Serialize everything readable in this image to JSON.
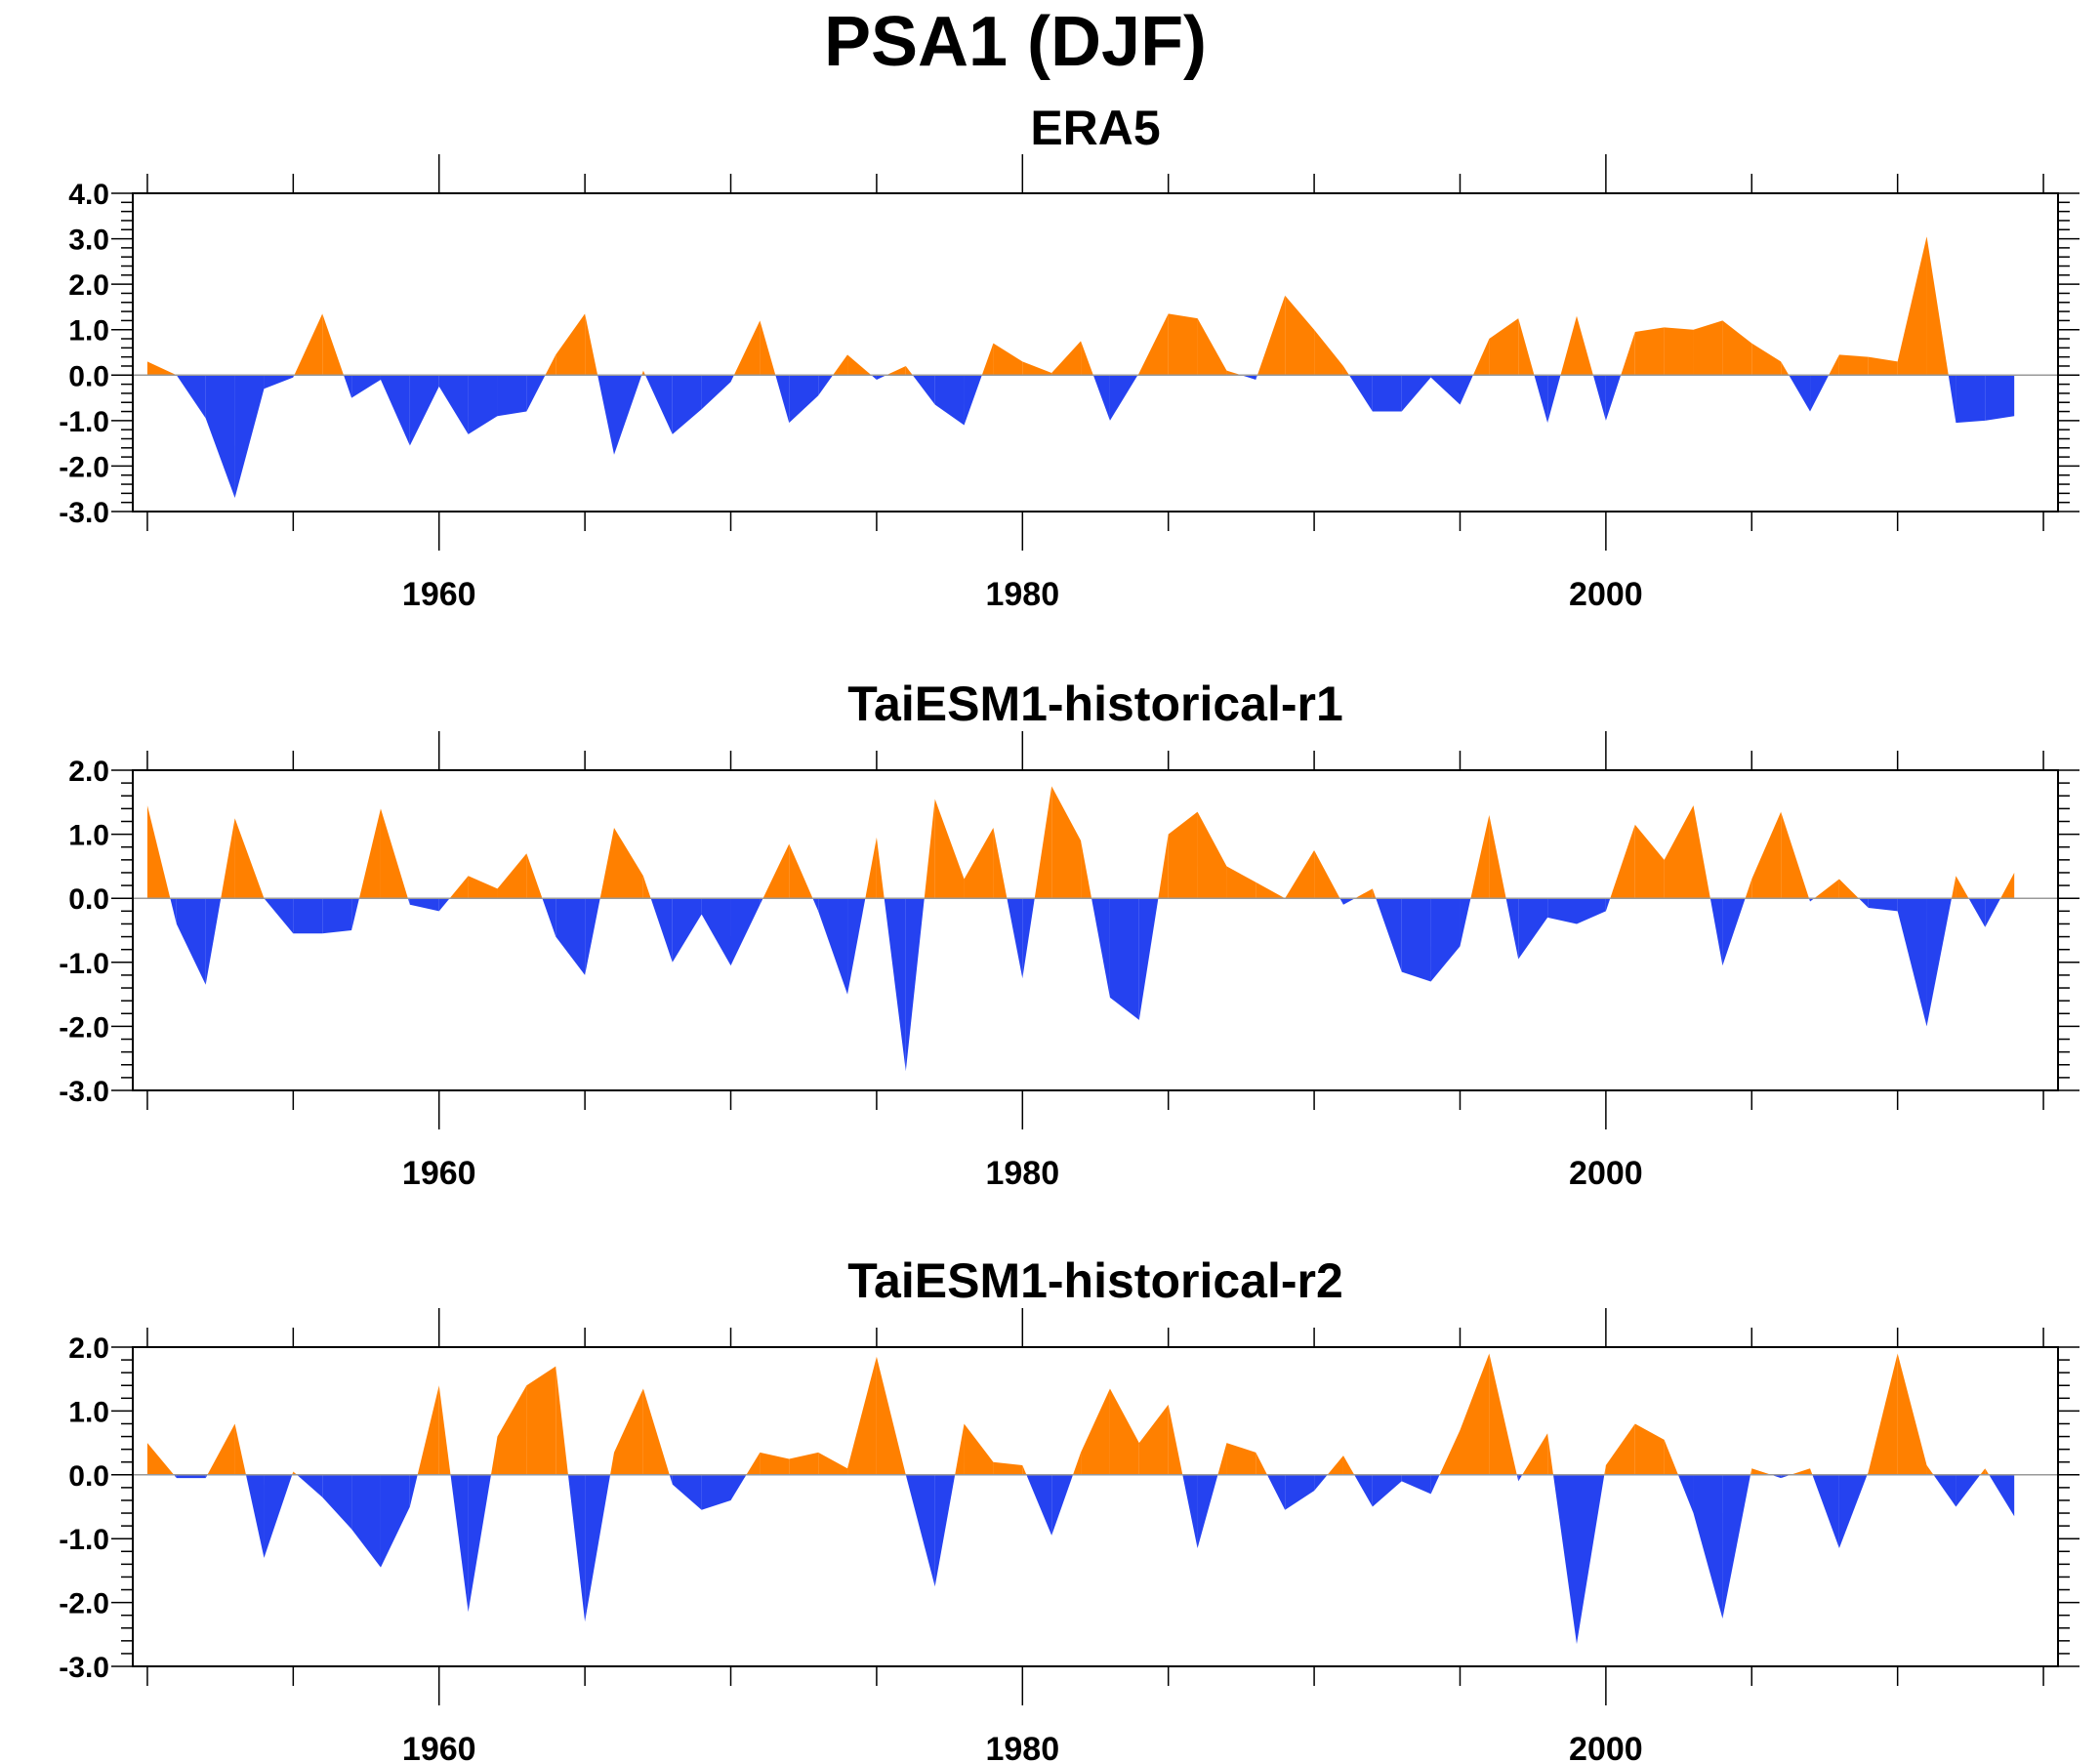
{
  "title": "PSA1 (DJF)",
  "colors": {
    "positive": "#ff8000",
    "negative": "#2542f0",
    "axis": "#000000"
  },
  "chart_data": [
    {
      "type": "area",
      "title": "ERA5",
      "xlabel": "",
      "ylabel": "",
      "xlim": [
        1949.5,
        2015.5
      ],
      "ylim": [
        -3.0,
        4.0
      ],
      "yticks": [
        -3.0,
        -2.0,
        -1.0,
        0.0,
        1.0,
        2.0,
        3.0,
        4.0
      ],
      "ytick_labels": [
        "-3.0",
        "-2.0",
        "-1.0",
        "0.0",
        "1.0",
        "2.0",
        "3.0",
        "4.0"
      ],
      "xticks": [
        1960,
        1980,
        2000
      ],
      "xtick_labels": [
        "1960",
        "1980",
        "2000"
      ],
      "grid": false,
      "x_start": 1950,
      "values": [
        0.3,
        0.0,
        -0.95,
        -2.7,
        -0.3,
        -0.05,
        1.35,
        -0.5,
        -0.1,
        -1.55,
        -0.25,
        -1.3,
        -0.9,
        -0.8,
        0.45,
        1.35,
        -1.75,
        0.1,
        -1.3,
        -0.75,
        -0.15,
        1.2,
        -1.05,
        -0.45,
        0.45,
        -0.1,
        0.2,
        -0.65,
        -1.1,
        0.7,
        0.3,
        0.05,
        0.75,
        -1.0,
        0.05,
        1.35,
        1.25,
        0.1,
        -0.1,
        1.75,
        1.0,
        0.2,
        -0.8,
        -0.8,
        -0.05,
        -0.65,
        0.8,
        1.25,
        -1.05,
        1.3,
        -1.0,
        0.95,
        1.05,
        1.0,
        1.2,
        0.7,
        0.3,
        -0.8,
        0.45,
        0.4,
        0.3,
        3.05,
        -1.05,
        -1.0,
        -0.9
      ]
    },
    {
      "type": "area",
      "title": "TaiESM1-historical-r1",
      "xlabel": "",
      "ylabel": "",
      "xlim": [
        1949.5,
        2015.5
      ],
      "ylim": [
        -3.0,
        2.0
      ],
      "yticks": [
        -3.0,
        -2.0,
        -1.0,
        0.0,
        1.0,
        2.0
      ],
      "ytick_labels": [
        "-3.0",
        "-2.0",
        "-1.0",
        "0.0",
        "1.0",
        "2.0"
      ],
      "xticks": [
        1960,
        1980,
        2000
      ],
      "xtick_labels": [
        "1960",
        "1980",
        "2000"
      ],
      "grid": false,
      "x_start": 1950,
      "values": [
        1.45,
        -0.4,
        -1.35,
        1.25,
        0.0,
        -0.55,
        -0.55,
        -0.5,
        1.4,
        -0.1,
        -0.2,
        0.35,
        0.15,
        0.7,
        -0.6,
        -1.2,
        1.1,
        0.35,
        -1.0,
        -0.25,
        -1.05,
        -0.1,
        0.85,
        -0.2,
        -1.5,
        0.95,
        -2.7,
        1.55,
        0.3,
        1.1,
        -1.25,
        1.75,
        0.9,
        -1.55,
        -1.9,
        1.0,
        1.35,
        0.5,
        0.25,
        0.0,
        0.75,
        -0.1,
        0.15,
        -1.15,
        -1.3,
        -0.75,
        1.3,
        -0.95,
        -0.3,
        -0.4,
        -0.2,
        1.15,
        0.6,
        1.45,
        -1.05,
        0.3,
        1.35,
        -0.05,
        0.3,
        -0.15,
        -0.2,
        -2.0,
        0.35,
        -0.45,
        0.4
      ]
    },
    {
      "type": "area",
      "title": "TaiESM1-historical-r2",
      "xlabel": "",
      "ylabel": "",
      "xlim": [
        1949.5,
        2015.5
      ],
      "ylim": [
        -3.0,
        2.0
      ],
      "yticks": [
        -3.0,
        -2.0,
        -1.0,
        0.0,
        1.0,
        2.0
      ],
      "ytick_labels": [
        "-3.0",
        "-2.0",
        "-1.0",
        "0.0",
        "1.0",
        "2.0"
      ],
      "xticks": [
        1960,
        1980,
        2000
      ],
      "xtick_labels": [
        "1960",
        "1980",
        "2000"
      ],
      "grid": false,
      "x_start": 1950,
      "values": [
        0.5,
        -0.05,
        -0.05,
        0.8,
        -1.3,
        0.05,
        -0.35,
        -0.85,
        -1.45,
        -0.5,
        1.4,
        -2.15,
        0.6,
        1.4,
        1.7,
        -2.3,
        0.35,
        1.35,
        -0.15,
        -0.55,
        -0.4,
        0.35,
        0.25,
        0.35,
        0.1,
        1.85,
        0.0,
        -1.75,
        0.8,
        0.2,
        0.15,
        -0.95,
        0.35,
        1.35,
        0.5,
        1.1,
        -1.15,
        0.5,
        0.35,
        -0.55,
        -0.25,
        0.3,
        -0.5,
        -0.1,
        -0.3,
        0.7,
        1.9,
        -0.1,
        0.65,
        -2.65,
        0.15,
        0.8,
        0.55,
        -0.6,
        -2.25,
        0.1,
        -0.05,
        0.1,
        -1.15,
        0.05,
        1.9,
        0.15,
        -0.5,
        0.1,
        -0.65
      ]
    }
  ]
}
